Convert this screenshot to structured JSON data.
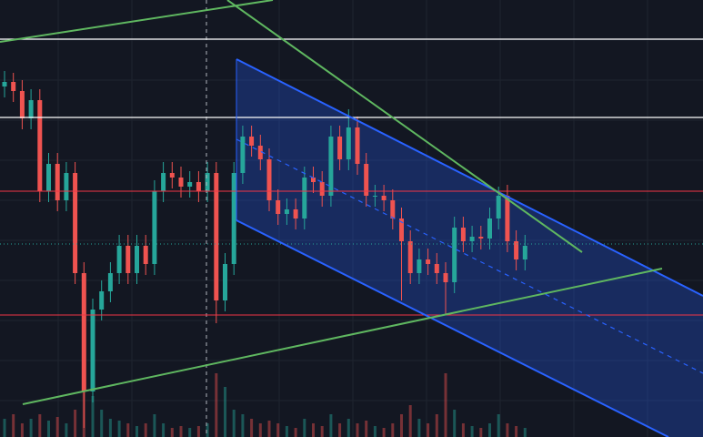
{
  "chart_data": {
    "type": "candlestick",
    "ylim": [
      0,
      480
    ],
    "volume_ylim": [
      0,
      480
    ],
    "up_color": "#26a69a",
    "down_color": "#ef5350",
    "open": [
      385,
      390,
      380,
      350,
      370,
      270,
      300,
      260,
      290,
      180,
      50,
      140,
      160,
      180,
      210,
      180,
      210,
      190,
      270,
      290,
      285,
      275,
      280,
      270,
      290,
      150,
      190,
      290,
      330,
      320,
      305,
      260,
      245,
      250,
      240,
      285,
      280,
      265,
      330,
      305,
      340,
      300,
      265,
      265,
      260,
      240,
      215,
      180,
      195,
      190,
      180,
      170,
      230,
      215,
      220,
      218,
      240,
      265,
      215,
      195
    ],
    "close": [
      390,
      380,
      350,
      370,
      270,
      300,
      260,
      290,
      180,
      50,
      140,
      160,
      180,
      210,
      180,
      210,
      190,
      270,
      290,
      285,
      275,
      280,
      270,
      290,
      150,
      190,
      290,
      330,
      320,
      305,
      260,
      245,
      250,
      240,
      285,
      280,
      265,
      330,
      305,
      340,
      300,
      265,
      265,
      260,
      240,
      215,
      180,
      195,
      190,
      180,
      170,
      230,
      215,
      220,
      218,
      240,
      265,
      215,
      195,
      210
    ],
    "high": [
      402,
      400,
      392,
      382,
      382,
      312,
      312,
      302,
      302,
      192,
      152,
      172,
      192,
      222,
      222,
      222,
      222,
      282,
      302,
      302,
      297,
      292,
      292,
      302,
      302,
      202,
      302,
      342,
      342,
      332,
      317,
      272,
      262,
      262,
      297,
      297,
      292,
      342,
      342,
      360,
      352,
      312,
      277,
      277,
      272,
      252,
      227,
      207,
      207,
      202,
      192,
      242,
      242,
      232,
      232,
      252,
      275,
      277,
      227,
      222
    ],
    "low": [
      373,
      368,
      338,
      338,
      258,
      258,
      248,
      248,
      168,
      10,
      38,
      128,
      148,
      168,
      168,
      168,
      178,
      178,
      258,
      273,
      263,
      263,
      258,
      258,
      125,
      138,
      178,
      278,
      308,
      293,
      248,
      233,
      233,
      228,
      228,
      268,
      253,
      253,
      293,
      293,
      288,
      253,
      253,
      248,
      228,
      150,
      168,
      168,
      178,
      168,
      135,
      158,
      203,
      203,
      206,
      206,
      228,
      203,
      183,
      183
    ],
    "volume": [
      20,
      25,
      15,
      20,
      25,
      18,
      22,
      15,
      30,
      60,
      45,
      30,
      20,
      18,
      15,
      12,
      15,
      25,
      15,
      10,
      12,
      10,
      12,
      15,
      70,
      55,
      30,
      25,
      20,
      15,
      18,
      15,
      12,
      10,
      20,
      15,
      12,
      25,
      15,
      20,
      15,
      18,
      12,
      10,
      15,
      25,
      35,
      20,
      15,
      25,
      70,
      30,
      15,
      12,
      10,
      15,
      25,
      15,
      12,
      10
    ]
  }
}
